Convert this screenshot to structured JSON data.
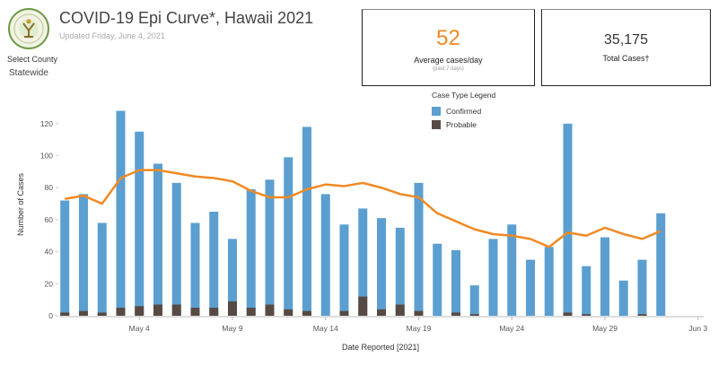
{
  "header": {
    "title": "COVID-19 Epi Curve*, Hawaii 2021",
    "updated": "Updated Friday, June 4, 2021"
  },
  "filter": {
    "label": "Select County",
    "value": "Statewide"
  },
  "kpis": {
    "average": {
      "value": "52",
      "label": "Average cases/day",
      "sublabel": "(past 7 days)"
    },
    "total": {
      "value": "35,175",
      "label": "Total Cases†"
    }
  },
  "legend": {
    "title": "Case Type Legend",
    "items": [
      {
        "label": "Confirmed",
        "color": "#5b9fd0"
      },
      {
        "label": "Probable",
        "color": "#574a44"
      }
    ]
  },
  "colors": {
    "confirmed": "#5b9fd0",
    "probable": "#574a44",
    "average": "#f08a24"
  },
  "chart_data": {
    "type": "bar",
    "xlabel": "Date Reported [2021]",
    "ylabel": "Number of Cases",
    "ylim": [
      0,
      130
    ],
    "yticks": [
      0,
      20,
      40,
      60,
      80,
      100,
      120
    ],
    "x_tick_labels": [
      "May 4",
      "May 9",
      "May 14",
      "May 19",
      "May 24",
      "May 29",
      "Jun 3"
    ],
    "x_tick_days": [
      4,
      9,
      14,
      19,
      24,
      29,
      34
    ],
    "x_range_days": [
      -0.3,
      34.3
    ],
    "grid": false,
    "legend_position": "top-center",
    "days": [
      0,
      1,
      2,
      3,
      4,
      5,
      6,
      7,
      8,
      9,
      10,
      11,
      12,
      13,
      14,
      15,
      16,
      17,
      18,
      19,
      20,
      21,
      22,
      23,
      24,
      25,
      26,
      27,
      28,
      29,
      30,
      31,
      32,
      33
    ],
    "series": [
      {
        "name": "Confirmed",
        "values": [
          72,
          76,
          58,
          128,
          115,
          95,
          83,
          58,
          65,
          48,
          79,
          85,
          99,
          118,
          76,
          57,
          67,
          61,
          55,
          83,
          45,
          41,
          19,
          48,
          57,
          35,
          43,
          120,
          31,
          49,
          22,
          35,
          64,
          0
        ]
      },
      {
        "name": "Probable",
        "values": [
          2,
          3,
          2,
          5,
          6,
          7,
          7,
          5,
          5,
          9,
          5,
          7,
          4,
          3,
          0,
          3,
          12,
          4,
          7,
          3,
          0,
          2,
          1,
          0,
          0,
          0,
          0,
          2,
          1,
          0,
          0,
          1,
          0,
          0
        ]
      },
      {
        "name": "7-day average",
        "values": [
          73,
          75,
          70,
          86,
          91,
          91,
          89,
          87,
          86,
          84,
          78,
          74,
          74,
          79,
          82,
          81,
          83,
          80,
          76,
          74,
          64,
          59,
          54,
          51,
          50,
          48,
          43,
          52,
          50,
          55,
          51,
          48,
          53,
          null
        ]
      }
    ]
  }
}
